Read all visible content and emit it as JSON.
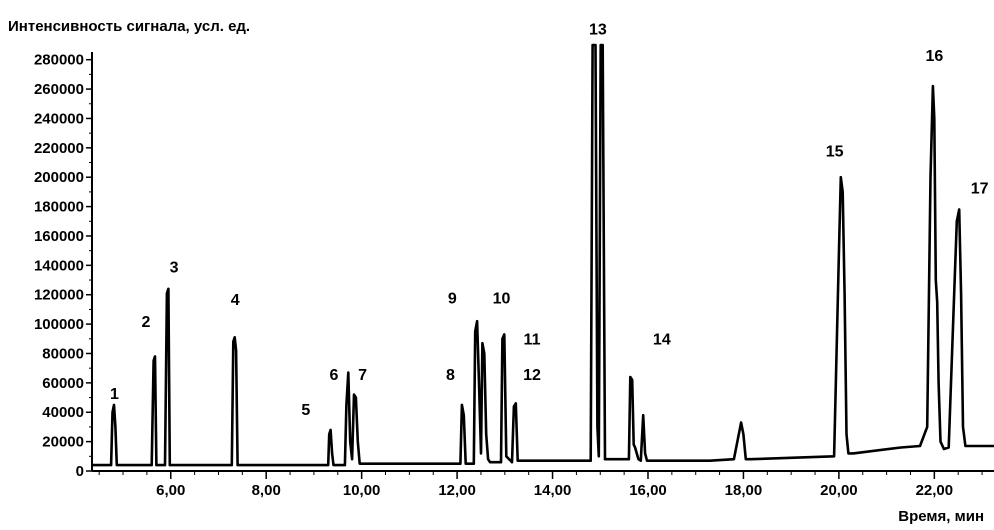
{
  "chart_data": {
    "type": "line",
    "title": "",
    "ylabel": "Интенсивность сигнала, усл. ед.",
    "xlabel": "Время, мин",
    "xlim": [
      4.35,
      23.25
    ],
    "ylim": [
      0,
      290000
    ],
    "x_ticks": [
      6,
      8,
      10,
      12,
      14,
      16,
      18,
      20,
      22
    ],
    "x_tick_labels": [
      "6,00",
      "8,00",
      "10,00",
      "12,00",
      "14,00",
      "16,00",
      "18,00",
      "20,00",
      "22,00"
    ],
    "y_ticks": [
      0,
      20000,
      40000,
      60000,
      80000,
      100000,
      120000,
      140000,
      160000,
      180000,
      200000,
      220000,
      240000,
      260000,
      280000
    ],
    "y_tick_labels": [
      "0",
      "20000",
      "40000",
      "60000",
      "80000",
      "100000",
      "120000",
      "140000",
      "160000",
      "180000",
      "200000",
      "220000",
      "240000",
      "260000",
      "280000"
    ],
    "grid": false,
    "peak_labels": [
      {
        "label": "1",
        "x": 4.82,
        "y": 49000
      },
      {
        "label": "2",
        "x": 5.48,
        "y": 98000
      },
      {
        "label": "3",
        "x": 6.07,
        "y": 135000
      },
      {
        "label": "4",
        "x": 7.35,
        "y": 113000
      },
      {
        "label": "5",
        "x": 8.83,
        "y": 38000
      },
      {
        "label": "6",
        "x": 9.42,
        "y": 62000
      },
      {
        "label": "7",
        "x": 10.02,
        "y": 62000
      },
      {
        "label": "8",
        "x": 11.86,
        "y": 62000
      },
      {
        "label": "9",
        "x": 11.9,
        "y": 114000
      },
      {
        "label": "10",
        "x": 12.93,
        "y": 114000
      },
      {
        "label": "11",
        "x": 13.57,
        "y": 86000
      },
      {
        "label": "12",
        "x": 13.57,
        "y": 62000
      },
      {
        "label": "13",
        "x": 14.95,
        "y": 297000
      },
      {
        "label": "14",
        "x": 16.29,
        "y": 86000
      },
      {
        "label": "15",
        "x": 19.91,
        "y": 214000
      },
      {
        "label": "16",
        "x": 22.0,
        "y": 279000
      },
      {
        "label": "17",
        "x": 22.95,
        "y": 189000
      }
    ],
    "series": [
      {
        "x": [
          4.35,
          4.75,
          4.78,
          4.81,
          4.84,
          4.87,
          5.6,
          5.64,
          5.67,
          5.7,
          5.88,
          5.92,
          5.95,
          5.98,
          7.28,
          7.31,
          7.34,
          7.37,
          7.4,
          9.3,
          9.32,
          9.35,
          9.38,
          9.41,
          9.65,
          9.68,
          9.72,
          9.76,
          9.8,
          9.84,
          9.88,
          9.92,
          9.96,
          12.07,
          12.1,
          12.14,
          12.18,
          12.35,
          12.38,
          12.42,
          12.46,
          12.5,
          12.53,
          12.57,
          12.61,
          12.65,
          12.69,
          12.92,
          12.95,
          12.99,
          13.03,
          13.15,
          13.19,
          13.23,
          13.27,
          14.8,
          14.84,
          14.86,
          14.9,
          14.94,
          14.97,
          15.01,
          15.05,
          15.1,
          15.6,
          15.63,
          15.67,
          15.7,
          15.73,
          15.8,
          15.85,
          15.9,
          15.94,
          15.98,
          16.05,
          17.3,
          17.8,
          17.95,
          18.0,
          18.05,
          18.15,
          19.9,
          20.0,
          20.04,
          20.08,
          20.12,
          20.16,
          20.2,
          20.3,
          21.3,
          21.7,
          21.85,
          21.92,
          21.97,
          22.0,
          22.03,
          22.06,
          22.09,
          22.13,
          22.2,
          22.3,
          22.42,
          22.47,
          22.52,
          22.56,
          22.6,
          22.65,
          22.75,
          23.25
        ],
        "values": [
          4000,
          4000,
          40000,
          45000,
          30000,
          4000,
          4000,
          75000,
          78000,
          4000,
          4000,
          121000,
          124000,
          4000,
          4000,
          88000,
          91000,
          82000,
          4000,
          4000,
          25000,
          28000,
          12000,
          4000,
          4000,
          45000,
          67000,
          20000,
          8000,
          52000,
          50000,
          20000,
          5000,
          5000,
          45000,
          38000,
          5000,
          5000,
          95000,
          102000,
          60000,
          12000,
          87000,
          80000,
          25000,
          8000,
          6000,
          6000,
          90000,
          93000,
          10000,
          6000,
          44000,
          46000,
          7000,
          7000,
          290000,
          290000,
          290000,
          30000,
          10000,
          290000,
          290000,
          8000,
          8000,
          64000,
          62000,
          18000,
          16000,
          8000,
          7000,
          38000,
          12000,
          7000,
          7000,
          7000,
          8000,
          33000,
          25000,
          8000,
          8000,
          10000,
          148000,
          200000,
          190000,
          120000,
          25000,
          12000,
          12000,
          16000,
          17000,
          30000,
          200000,
          262000,
          240000,
          130000,
          115000,
          60000,
          20000,
          15000,
          16000,
          125000,
          170000,
          178000,
          120000,
          30000,
          17000,
          17000,
          17000
        ]
      }
    ]
  }
}
